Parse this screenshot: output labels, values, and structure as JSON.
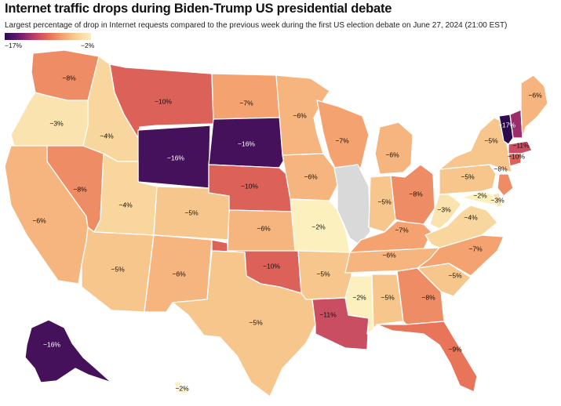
{
  "title": "Internet traffic drops during Biden-Trump US presidential debate",
  "subtitle": "Largest percentage of drop in Internet requests compared to the previous week during the first US election debate on June 27, 2024 (21:00 EST)",
  "legend": {
    "min_label": "−17%",
    "max_label": "−2%",
    "color_scale": [
      "#2c0b4f",
      "#6a1a6e",
      "#b83b69",
      "#e56a55",
      "#f4a26f",
      "#f8cf95",
      "#fbf0be"
    ],
    "no_data_color": "#d9d9d9"
  },
  "states": [
    {
      "id": "WA",
      "label": "−8%",
      "value": -8
    },
    {
      "id": "OR",
      "label": "−3%",
      "value": -3
    },
    {
      "id": "CA",
      "label": "−6%",
      "value": -6
    },
    {
      "id": "NV",
      "label": "−8%",
      "value": -8
    },
    {
      "id": "ID",
      "label": "−4%",
      "value": -4
    },
    {
      "id": "MT",
      "label": "−10%",
      "value": -10
    },
    {
      "id": "WY",
      "label": "−16%",
      "value": -16
    },
    {
      "id": "UT",
      "label": "−4%",
      "value": -4
    },
    {
      "id": "AZ",
      "label": "−5%",
      "value": -5
    },
    {
      "id": "CO",
      "label": "−5%",
      "value": -5
    },
    {
      "id": "NM",
      "label": "−6%",
      "value": -6
    },
    {
      "id": "ND",
      "label": "−7%",
      "value": -7
    },
    {
      "id": "SD",
      "label": "−16%",
      "value": -16
    },
    {
      "id": "NE",
      "label": "−10%",
      "value": -10
    },
    {
      "id": "KS",
      "label": "−6%",
      "value": -6
    },
    {
      "id": "OK",
      "label": "−10%",
      "value": -10
    },
    {
      "id": "TX",
      "label": "−5%",
      "value": -5
    },
    {
      "id": "MN",
      "label": "−6%",
      "value": -6
    },
    {
      "id": "IA",
      "label": "−6%",
      "value": -6
    },
    {
      "id": "MO",
      "label": "−2%",
      "value": -2
    },
    {
      "id": "AR",
      "label": "−5%",
      "value": -5
    },
    {
      "id": "LA",
      "label": "−11%",
      "value": -11
    },
    {
      "id": "WI",
      "label": "−7%",
      "value": -7
    },
    {
      "id": "IL",
      "label": "",
      "value": null
    },
    {
      "id": "MI",
      "label": "−6%",
      "value": -6
    },
    {
      "id": "IN",
      "label": "−5%",
      "value": -5
    },
    {
      "id": "OH",
      "label": "−8%",
      "value": -8
    },
    {
      "id": "KY",
      "label": "−7%",
      "value": -7
    },
    {
      "id": "TN",
      "label": "−6%",
      "value": -6
    },
    {
      "id": "MS",
      "label": "−2%",
      "value": -2
    },
    {
      "id": "AL",
      "label": "−5%",
      "value": -5
    },
    {
      "id": "GA",
      "label": "−8%",
      "value": -8
    },
    {
      "id": "FL",
      "label": "−9%",
      "value": -9
    },
    {
      "id": "SC",
      "label": "−5%",
      "value": -5
    },
    {
      "id": "NC",
      "label": "−7%",
      "value": -7
    },
    {
      "id": "VA",
      "label": "−4%",
      "value": -4
    },
    {
      "id": "WV",
      "label": "−3%",
      "value": -3
    },
    {
      "id": "PA",
      "label": "−5%",
      "value": -5
    },
    {
      "id": "NY",
      "label": "−5%",
      "value": -5
    },
    {
      "id": "MD",
      "label": "−2%",
      "value": -2
    },
    {
      "id": "DE",
      "label": "−3%",
      "value": -3
    },
    {
      "id": "NJ",
      "label": "−8%",
      "value": -8
    },
    {
      "id": "CT",
      "label": "−10%",
      "value": -10
    },
    {
      "id": "MA",
      "label": "−11%",
      "value": -11
    },
    {
      "id": "VT",
      "label": "−17%",
      "value": -17
    },
    {
      "id": "NH",
      "label": "",
      "value": -13
    },
    {
      "id": "ME",
      "label": "−6%",
      "value": -6
    },
    {
      "id": "AK",
      "label": "−16%",
      "value": -16
    },
    {
      "id": "HI",
      "label": "−2%",
      "value": -2
    }
  ]
}
